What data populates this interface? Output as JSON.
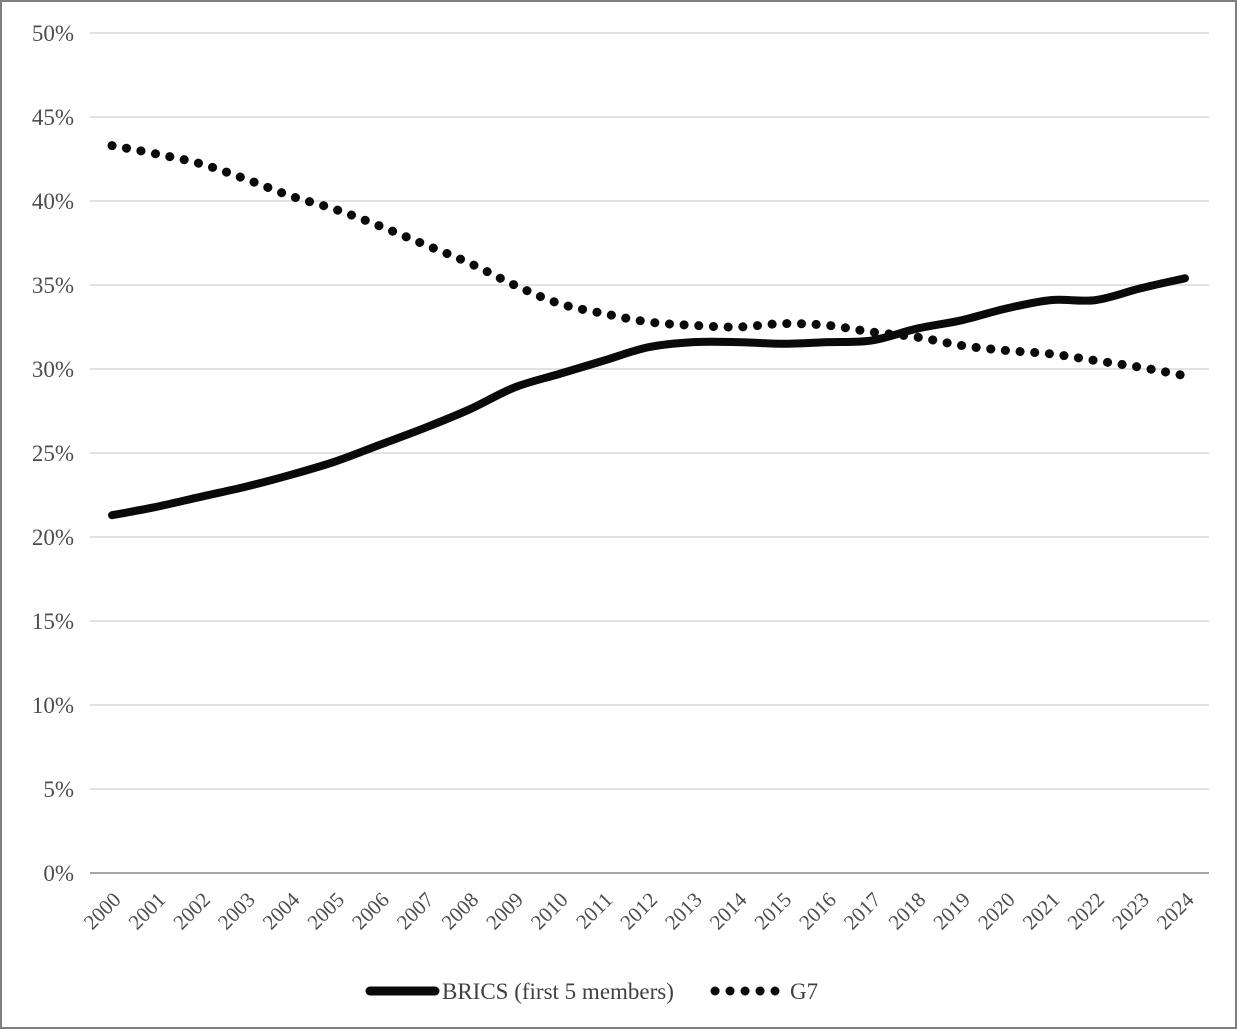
{
  "chart_data": {
    "type": "line",
    "title": "",
    "xlabel": "",
    "ylabel": "",
    "x_labels": [
      "2000",
      "2001",
      "2002",
      "2003",
      "2004",
      "2005",
      "2006",
      "2007",
      "2008",
      "2009",
      "2010",
      "2011",
      "2012",
      "2013",
      "2014",
      "2015",
      "2016",
      "2017",
      "2018",
      "2019",
      "2020",
      "2021",
      "2022",
      "2023",
      "2024"
    ],
    "series": [
      {
        "name": "BRICS (first 5 members)",
        "style": "solid",
        "color": "#0a0a0a",
        "values": [
          21.3,
          21.8,
          22.4,
          23.0,
          23.7,
          24.5,
          25.5,
          26.5,
          27.6,
          28.9,
          29.7,
          30.5,
          31.3,
          31.6,
          31.6,
          31.5,
          31.6,
          31.7,
          32.4,
          32.9,
          33.6,
          34.1,
          34.1,
          34.8,
          35.4
        ]
      },
      {
        "name": "G7",
        "style": "dotted",
        "color": "#0a0a0a",
        "values": [
          43.3,
          42.8,
          42.2,
          41.3,
          40.3,
          39.5,
          38.5,
          37.4,
          36.3,
          35.0,
          33.9,
          33.3,
          32.8,
          32.6,
          32.5,
          32.7,
          32.6,
          32.2,
          31.9,
          31.4,
          31.1,
          30.9,
          30.5,
          30.1,
          29.6
        ]
      }
    ],
    "ylim": [
      0,
      50
    ],
    "ytick_step": 5,
    "ytick_labels": [
      "0%",
      "5%",
      "10%",
      "15%",
      "20%",
      "25%",
      "30%",
      "35%",
      "40%",
      "45%",
      "50%"
    ],
    "grid": "horizontal",
    "gridline_color": "#d9d9d9",
    "axis_line_color": "#a6a6a6",
    "tick_label_color": "#4d4d4d",
    "legend_position": "bottom-center"
  }
}
